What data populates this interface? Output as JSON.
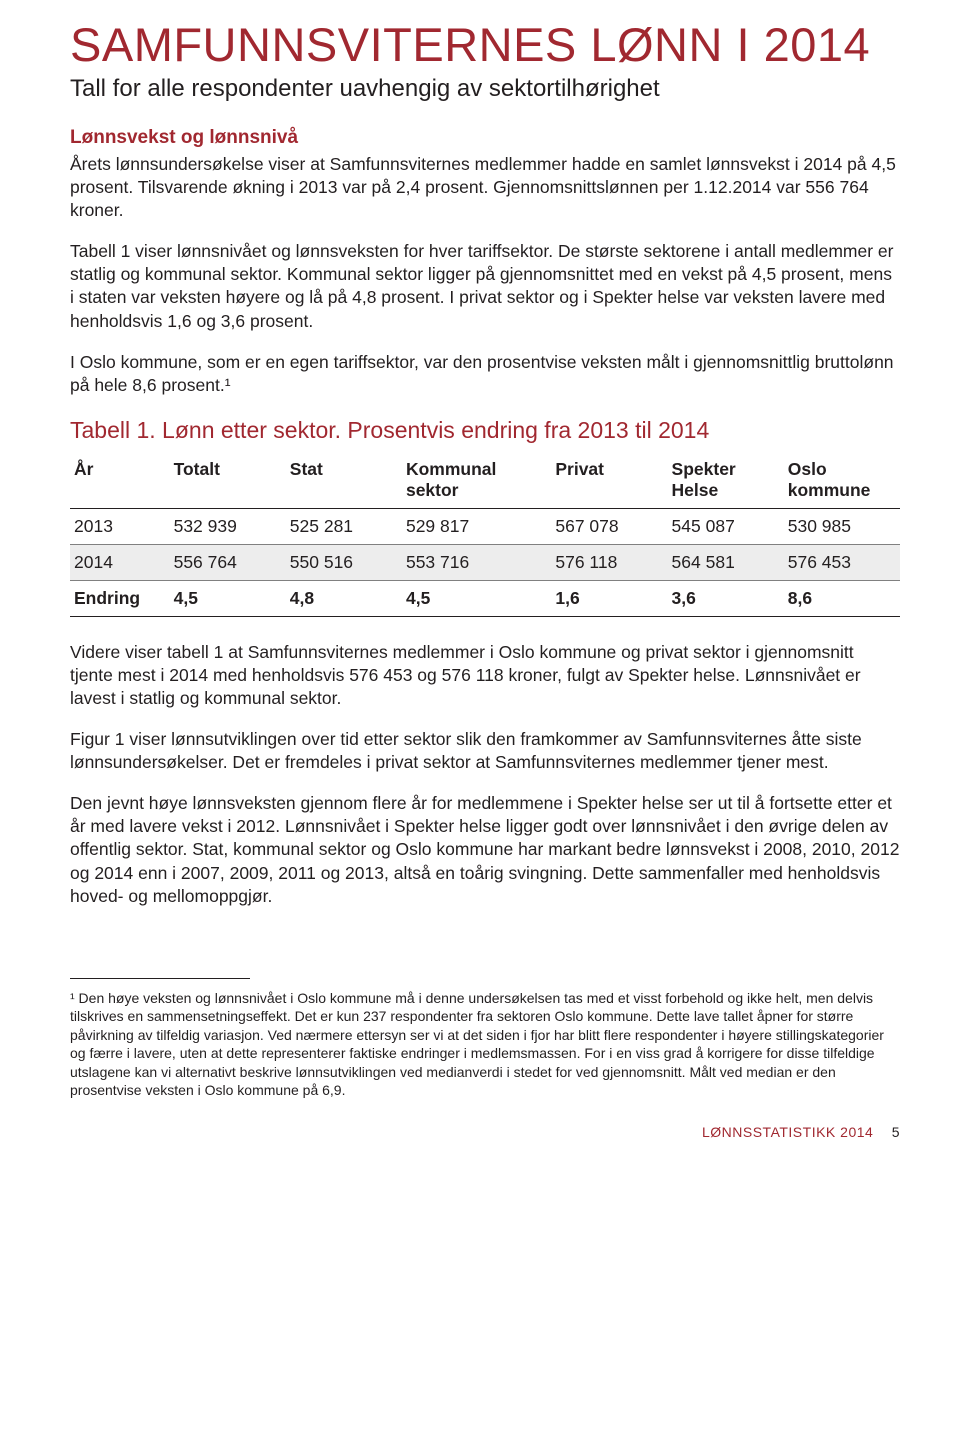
{
  "colors": {
    "accent": "#a12830",
    "text": "#231f20",
    "rowShade": "#ededed",
    "ruleGray": "#808080"
  },
  "title": "SAMFUNNSVITERNES LØNN I 2014",
  "subtitle": "Tall for alle respondenter uavhengig av sektortilhørighet",
  "h2": "Lønnsvekst og lønnsnivå",
  "p1": "Årets lønnsundersøkelse viser at Samfunnsviternes medlemmer hadde en samlet lønnsvekst i 2014 på 4,5 prosent. Tilsvarende økning i 2013 var på 2,4 prosent. Gjennomsnittslønnen per 1.12.2014 var 556 764 kroner.",
  "p2": "Tabell 1 viser lønnsnivået og lønnsveksten for hver tariffsektor. De største sektorene i antall medlemmer er statlig og kommunal sektor. Kommunal sektor ligger på gjennomsnittet med en vekst på 4,5 prosent, mens i staten var veksten høyere og lå på 4,8 prosent. I privat sektor og i Spekter helse var veksten lavere med henholdsvis 1,6 og 3,6 prosent.",
  "p3": "I Oslo kommune, som er en egen tariffsektor, var den prosentvise veksten målt i gjennomsnittlig bruttolønn på hele 8,6 prosent.¹",
  "tableTitle": "Tabell 1. Lønn etter sektor. Prosentvis endring fra 2013 til 2014",
  "table": {
    "columns": [
      {
        "line1": "År",
        "line2": ""
      },
      {
        "line1": "Totalt",
        "line2": ""
      },
      {
        "line1": "Stat",
        "line2": ""
      },
      {
        "line1": "Kommunal",
        "line2": "sektor"
      },
      {
        "line1": "Privat",
        "line2": ""
      },
      {
        "line1": "Spekter",
        "line2": "Helse"
      },
      {
        "line1": "Oslo",
        "line2": "kommune"
      }
    ],
    "rows": [
      [
        "2013",
        "532 939",
        "525 281",
        "529 817",
        "567 078",
        "545 087",
        "530 985"
      ],
      [
        "2014",
        "556 764",
        "550 516",
        "553 716",
        "576 118",
        "564 581",
        "576 453"
      ],
      [
        "Endring",
        "4,5",
        "4,8",
        "4,5",
        "1,6",
        "3,6",
        "8,6"
      ]
    ]
  },
  "p4": "Videre viser tabell 1 at Samfunnsviternes medlemmer i Oslo kommune og privat sektor i gjennomsnitt tjente mest i 2014 med henholdsvis 576 453 og 576 118 kroner, fulgt av Spekter helse. Lønnsnivået er lavest i statlig og kommunal sektor.",
  "p5": "Figur 1 viser lønnsutviklingen over tid etter sektor slik den framkommer av Samfunnsviternes åtte siste lønnsundersøkelser. Det er fremdeles i privat sektor at Samfunnsviternes medlemmer tjener mest.",
  "p6": "Den jevnt høye lønnsveksten gjennom flere år for medlemmene i Spekter helse ser ut til å fortsette etter et år med lavere vekst i 2012. Lønnsnivået i Spekter helse ligger godt over lønnsnivået i den øvrige delen av offentlig sektor. Stat, kommunal sektor og Oslo kommune har markant bedre lønnsvekst i 2008, 2010, 2012 og 2014 enn i 2007, 2009, 2011 og 2013, altså en toårig svingning. Dette sammenfaller med henholdsvis hoved- og mellomoppgjør.",
  "footnote": "¹ Den høye veksten og lønnsnivået i Oslo kommune må i denne undersøkelsen tas med et visst forbehold og ikke helt, men delvis tilskrives en sammensetningseffekt. Det er kun 237 respondenter fra sektoren Oslo kommune. Dette lave tallet åpner for større påvirkning av tilfeldig variasjon. Ved nærmere ettersyn ser vi at det siden i fjor har blitt flere respondenter i høyere stillingskategorier og færre i lavere, uten at dette representerer faktiske endringer i medlemsmassen. For i en viss grad å korrigere for disse tilfeldige utslagene kan vi alternativt beskrive lønnsutviklingen ved medianverdi i stedet for ved gjennomsnitt. Målt ved median er den prosentvise veksten i Oslo kommune på 6,9.",
  "footer": {
    "label": "LØNNSSTATISTIKK 2014",
    "page": "5"
  }
}
